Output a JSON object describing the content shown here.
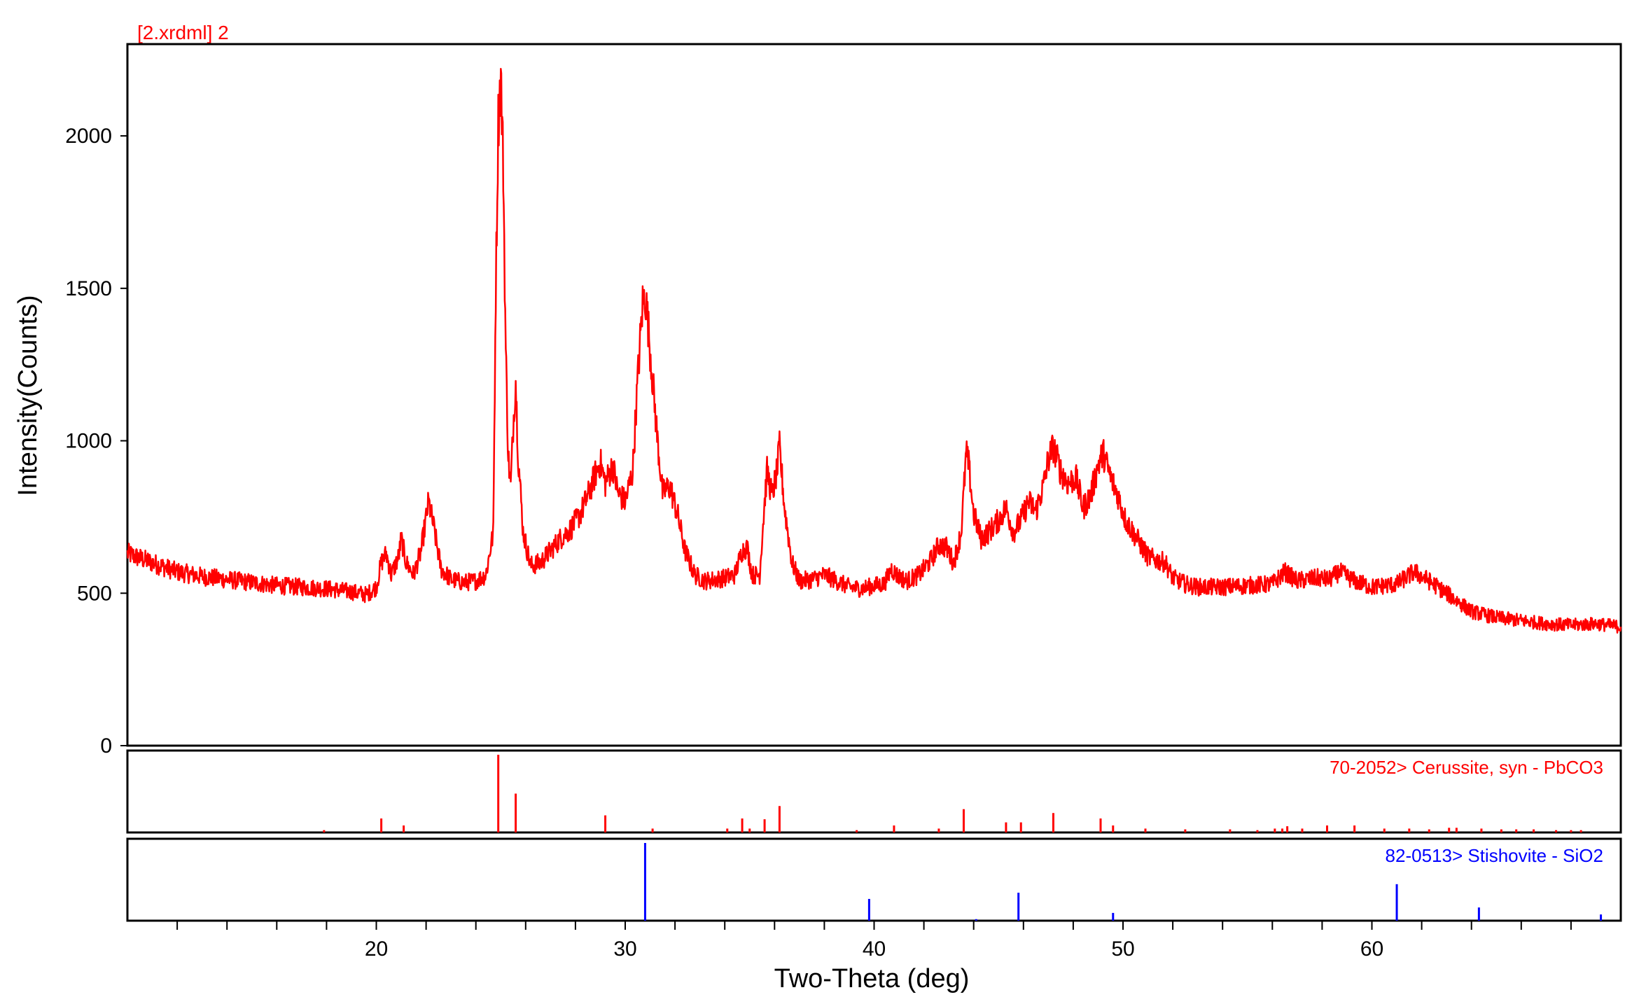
{
  "file_label": "[2.xrdml] 2",
  "colors": {
    "pattern": "#ff0000",
    "ref1": "#ff0000",
    "ref2": "#0000ff",
    "frame": "#000000"
  },
  "chart_data": {
    "type": "line",
    "xlabel": "Two-Theta (deg)",
    "ylabel": "Intensity(Counts)",
    "xlim": [
      10,
      70
    ],
    "ylim": [
      0,
      2200
    ],
    "x_ticks": [
      20,
      30,
      40,
      50,
      60
    ],
    "y_ticks": [
      0,
      500,
      1000,
      1500,
      2000
    ],
    "grid": false,
    "series": [
      {
        "points": [
          [
            10,
            630
          ],
          [
            11,
            600
          ],
          [
            12,
            570
          ],
          [
            13,
            555
          ],
          [
            14,
            545
          ],
          [
            15,
            535
          ],
          [
            16,
            525
          ],
          [
            17,
            520
          ],
          [
            18,
            515
          ],
          [
            19,
            505
          ],
          [
            19.6,
            495
          ],
          [
            20.0,
            520
          ],
          [
            20.2,
            600
          ],
          [
            20.4,
            630
          ],
          [
            20.6,
            560
          ],
          [
            20.9,
            620
          ],
          [
            21.0,
            680
          ],
          [
            21.2,
            600
          ],
          [
            21.5,
            560
          ],
          [
            21.8,
            640
          ],
          [
            22.1,
            800
          ],
          [
            22.3,
            720
          ],
          [
            22.6,
            580
          ],
          [
            23,
            545
          ],
          [
            23.5,
            535
          ],
          [
            24,
            540
          ],
          [
            24.4,
            560
          ],
          [
            24.7,
            700
          ],
          [
            24.8,
            1500
          ],
          [
            24.9,
            2050
          ],
          [
            25.0,
            2200
          ],
          [
            25.1,
            1900
          ],
          [
            25.2,
            1300
          ],
          [
            25.3,
            950
          ],
          [
            25.4,
            850
          ],
          [
            25.5,
            1050
          ],
          [
            25.6,
            1200
          ],
          [
            25.7,
            950
          ],
          [
            25.9,
            700
          ],
          [
            26.2,
            590
          ],
          [
            26.6,
            600
          ],
          [
            27,
            640
          ],
          [
            27.4,
            680
          ],
          [
            27.8,
            710
          ],
          [
            28.2,
            760
          ],
          [
            28.5,
            820
          ],
          [
            28.8,
            890
          ],
          [
            29.0,
            930
          ],
          [
            29.2,
            860
          ],
          [
            29.5,
            920
          ],
          [
            29.7,
            830
          ],
          [
            30.0,
            800
          ],
          [
            30.3,
            900
          ],
          [
            30.5,
            1200
          ],
          [
            30.7,
            1450
          ],
          [
            30.8,
            1480
          ],
          [
            30.9,
            1400
          ],
          [
            31.1,
            1200
          ],
          [
            31.3,
            1000
          ],
          [
            31.5,
            830
          ],
          [
            31.8,
            850
          ],
          [
            32.1,
            760
          ],
          [
            32.4,
            640
          ],
          [
            32.8,
            560
          ],
          [
            33.2,
            540
          ],
          [
            33.6,
            545
          ],
          [
            34.0,
            550
          ],
          [
            34.4,
            560
          ],
          [
            34.7,
            640
          ],
          [
            34.9,
            650
          ],
          [
            35.1,
            560
          ],
          [
            35.4,
            560
          ],
          [
            35.6,
            800
          ],
          [
            35.7,
            900
          ],
          [
            35.9,
            820
          ],
          [
            36.1,
            900
          ],
          [
            36.2,
            980
          ],
          [
            36.4,
            780
          ],
          [
            36.7,
            600
          ],
          [
            37.0,
            540
          ],
          [
            37.5,
            545
          ],
          [
            38,
            560
          ],
          [
            38.5,
            540
          ],
          [
            39,
            520
          ],
          [
            39.5,
            515
          ],
          [
            40,
            525
          ],
          [
            40.4,
            530
          ],
          [
            40.7,
            580
          ],
          [
            40.9,
            560
          ],
          [
            41.3,
            540
          ],
          [
            41.8,
            560
          ],
          [
            42.3,
            610
          ],
          [
            42.6,
            660
          ],
          [
            42.9,
            650
          ],
          [
            43.2,
            600
          ],
          [
            43.5,
            700
          ],
          [
            43.7,
            960
          ],
          [
            43.8,
            920
          ],
          [
            44.0,
            760
          ],
          [
            44.3,
            680
          ],
          [
            44.6,
            700
          ],
          [
            45.0,
            740
          ],
          [
            45.3,
            780
          ],
          [
            45.6,
            700
          ],
          [
            45.9,
            740
          ],
          [
            46.2,
            800
          ],
          [
            46.5,
            770
          ],
          [
            46.8,
            850
          ],
          [
            47.0,
            940
          ],
          [
            47.2,
            980
          ],
          [
            47.5,
            900
          ],
          [
            47.8,
            860
          ],
          [
            48.1,
            880
          ],
          [
            48.4,
            780
          ],
          [
            48.7,
            820
          ],
          [
            49.0,
            920
          ],
          [
            49.2,
            960
          ],
          [
            49.5,
            880
          ],
          [
            49.8,
            820
          ],
          [
            50.1,
            740
          ],
          [
            50.4,
            700
          ],
          [
            50.7,
            660
          ],
          [
            51.0,
            620
          ],
          [
            51.3,
            610
          ],
          [
            51.7,
            600
          ],
          [
            52.0,
            550
          ],
          [
            52.5,
            530
          ],
          [
            53,
            520
          ],
          [
            54,
            520
          ],
          [
            55,
            525
          ],
          [
            56,
            530
          ],
          [
            56.5,
            570
          ],
          [
            57,
            540
          ],
          [
            57.8,
            550
          ],
          [
            58.3,
            545
          ],
          [
            58.7,
            570
          ],
          [
            59.3,
            540
          ],
          [
            60,
            520
          ],
          [
            61,
            530
          ],
          [
            61.7,
            570
          ],
          [
            62.3,
            540
          ],
          [
            63,
            500
          ],
          [
            63.5,
            470
          ],
          [
            64,
            440
          ],
          [
            65,
            420
          ],
          [
            66,
            410
          ],
          [
            67,
            400
          ],
          [
            68,
            395
          ],
          [
            69,
            400
          ],
          [
            70,
            390
          ]
        ]
      }
    ],
    "references": [
      {
        "label": "70-2052> Cerussite, syn - PbCO3",
        "peaks": [
          [
            17.9,
            3
          ],
          [
            20.2,
            18
          ],
          [
            21.1,
            9
          ],
          [
            24.9,
            100
          ],
          [
            25.6,
            50
          ],
          [
            29.2,
            22
          ],
          [
            31.1,
            5
          ],
          [
            34.1,
            5
          ],
          [
            34.7,
            18
          ],
          [
            35.0,
            5
          ],
          [
            35.6,
            17
          ],
          [
            36.2,
            34
          ],
          [
            39.3,
            3
          ],
          [
            40.8,
            9
          ],
          [
            42.6,
            5
          ],
          [
            43.6,
            30
          ],
          [
            45.3,
            13
          ],
          [
            45.9,
            13
          ],
          [
            47.2,
            25
          ],
          [
            49.1,
            18
          ],
          [
            49.6,
            9
          ],
          [
            50.9,
            5
          ],
          [
            52.5,
            4
          ],
          [
            54.3,
            4
          ],
          [
            55.4,
            3
          ],
          [
            56.1,
            5
          ],
          [
            56.4,
            5
          ],
          [
            56.6,
            8
          ],
          [
            57.2,
            5
          ],
          [
            58.2,
            9
          ],
          [
            59.3,
            9
          ],
          [
            60.5,
            5
          ],
          [
            61.5,
            5
          ],
          [
            62.3,
            4
          ],
          [
            63.1,
            6
          ],
          [
            63.4,
            6
          ],
          [
            64.4,
            5
          ],
          [
            65.2,
            4
          ],
          [
            65.8,
            4
          ],
          [
            66.5,
            4
          ],
          [
            67.4,
            3
          ],
          [
            68.0,
            3
          ],
          [
            68.4,
            3
          ]
        ]
      },
      {
        "label": "82-0513> Stishovite - SiO2",
        "peaks": [
          [
            30.8,
            100
          ],
          [
            39.8,
            28
          ],
          [
            44.1,
            2
          ],
          [
            45.8,
            36
          ],
          [
            49.6,
            10
          ],
          [
            61.0,
            47
          ],
          [
            64.3,
            17
          ],
          [
            69.2,
            8
          ]
        ]
      }
    ]
  }
}
